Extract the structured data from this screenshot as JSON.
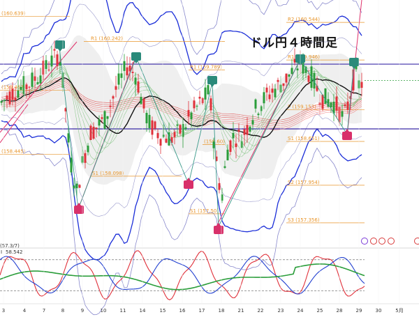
{
  "title": "ドル円４時間足",
  "chart_data": {
    "type": "candlestick",
    "title": "ドル円４時間足",
    "xlabel": "",
    "ylabel": "",
    "x_ticks": [
      "3",
      "4",
      "7",
      "8",
      "9",
      "10",
      "11",
      "14",
      "15",
      "16",
      "17",
      "18",
      "21",
      "22",
      "23",
      "24",
      "25",
      "28",
      "29",
      "30",
      "5月"
    ],
    "ylim": [
      157.0,
      160.9
    ],
    "pivot_levels": [
      {
        "label": "R2 (160.544)",
        "value": 160.544
      },
      {
        "label": "R1 (160.242)",
        "value": 160.242
      },
      {
        "label": "(160.639)",
        "value": 160.639
      },
      {
        "label": "R1 (159.946)",
        "value": 159.946
      },
      {
        "label": "R1 (159.789)",
        "value": 159.789
      },
      {
        "label": "(159.467)",
        "value": 159.467
      },
      {
        "label": "P (159.153)",
        "value": 159.153
      },
      {
        "label": "S1 (158.651)",
        "value": 158.651
      },
      {
        "label": "(158.60)",
        "value": 158.6
      },
      {
        "label": "(158.445)",
        "value": 158.445
      },
      {
        "label": "S1 (158.098)",
        "value": 158.098
      },
      {
        "label": "S2 (157.954)",
        "value": 157.954
      },
      {
        "label": "S1 (157.50)",
        "value": 157.5
      },
      {
        "label": "S3 (157.356)",
        "value": 157.356
      }
    ],
    "horizontal_lines": [
      159.88,
      158.85
    ],
    "oscillator": {
      "label": "58.542",
      "prefix": "I",
      "left_value": "(57.3/7)",
      "levels": [
        80,
        20
      ]
    },
    "colors": {
      "up": "#2a9d3a",
      "down": "#e0303a",
      "pivot": "#e8952a",
      "band_outer": "#1a2dd8",
      "band_inner": "#8888cc",
      "hline": "#3a2aa8",
      "trend": "#e0306a",
      "marker_high": "#2a8a7a",
      "marker_low": "#d8306a"
    }
  }
}
